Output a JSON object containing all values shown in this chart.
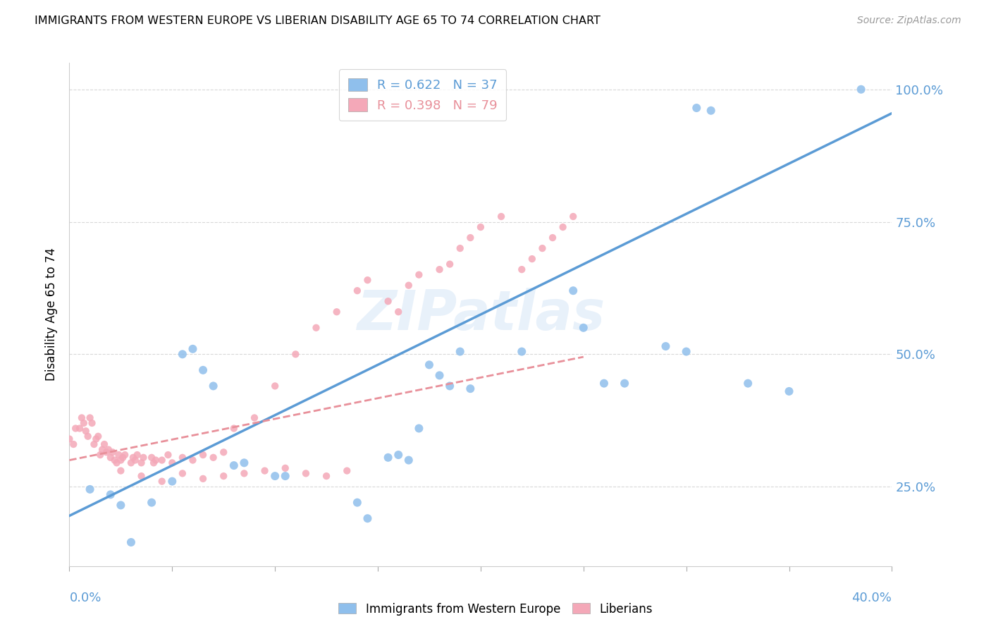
{
  "title": "IMMIGRANTS FROM WESTERN EUROPE VS LIBERIAN DISABILITY AGE 65 TO 74 CORRELATION CHART",
  "source": "Source: ZipAtlas.com",
  "ylabel": "Disability Age 65 to 74",
  "xlim": [
    0.0,
    0.4
  ],
  "ylim": [
    0.1,
    1.05
  ],
  "blue_color": "#8fbfec",
  "pink_color": "#f4a8b8",
  "blue_line_color": "#5b9bd5",
  "pink_line_color": "#e8909a",
  "legend_R1": "0.622",
  "legend_N1": "37",
  "legend_R2": "0.398",
  "legend_N2": "79",
  "watermark": "ZIPatlas",
  "blue_line_x0": 0.0,
  "blue_line_y0": 0.195,
  "blue_line_x1": 0.4,
  "blue_line_y1": 0.955,
  "pink_line_x0": 0.0,
  "pink_line_y0": 0.3,
  "pink_line_x1": 0.25,
  "pink_line_y1": 0.495,
  "blue_x": [
    0.305,
    0.312,
    0.385,
    0.245,
    0.25,
    0.175,
    0.18,
    0.185,
    0.19,
    0.195,
    0.155,
    0.16,
    0.165,
    0.17,
    0.14,
    0.145,
    0.065,
    0.07,
    0.055,
    0.06,
    0.04,
    0.05,
    0.02,
    0.025,
    0.03,
    0.35,
    0.29,
    0.3,
    0.22,
    0.1,
    0.105,
    0.08,
    0.085,
    0.01,
    0.26,
    0.27,
    0.33
  ],
  "blue_y": [
    0.965,
    0.96,
    1.0,
    0.62,
    0.55,
    0.48,
    0.46,
    0.44,
    0.505,
    0.435,
    0.305,
    0.31,
    0.3,
    0.36,
    0.22,
    0.19,
    0.47,
    0.44,
    0.5,
    0.51,
    0.22,
    0.26,
    0.235,
    0.215,
    0.145,
    0.43,
    0.515,
    0.505,
    0.505,
    0.27,
    0.27,
    0.29,
    0.295,
    0.245,
    0.445,
    0.445,
    0.445
  ],
  "pink_x": [
    0.0,
    0.002,
    0.003,
    0.005,
    0.006,
    0.007,
    0.008,
    0.009,
    0.01,
    0.011,
    0.012,
    0.013,
    0.014,
    0.015,
    0.016,
    0.017,
    0.018,
    0.019,
    0.02,
    0.021,
    0.022,
    0.023,
    0.024,
    0.025,
    0.026,
    0.027,
    0.03,
    0.031,
    0.032,
    0.033,
    0.035,
    0.036,
    0.04,
    0.041,
    0.042,
    0.045,
    0.048,
    0.05,
    0.055,
    0.06,
    0.065,
    0.07,
    0.075,
    0.08,
    0.09,
    0.1,
    0.11,
    0.12,
    0.13,
    0.14,
    0.145,
    0.155,
    0.16,
    0.165,
    0.17,
    0.18,
    0.185,
    0.19,
    0.195,
    0.2,
    0.21,
    0.22,
    0.225,
    0.23,
    0.235,
    0.24,
    0.245,
    0.025,
    0.035,
    0.045,
    0.055,
    0.065,
    0.075,
    0.085,
    0.095,
    0.105,
    0.115,
    0.125,
    0.135
  ],
  "pink_y": [
    0.34,
    0.33,
    0.36,
    0.36,
    0.38,
    0.37,
    0.355,
    0.345,
    0.38,
    0.37,
    0.33,
    0.34,
    0.345,
    0.31,
    0.32,
    0.33,
    0.315,
    0.32,
    0.305,
    0.315,
    0.3,
    0.295,
    0.31,
    0.3,
    0.305,
    0.31,
    0.295,
    0.305,
    0.3,
    0.31,
    0.295,
    0.305,
    0.305,
    0.295,
    0.3,
    0.3,
    0.31,
    0.295,
    0.305,
    0.3,
    0.31,
    0.305,
    0.315,
    0.36,
    0.38,
    0.44,
    0.5,
    0.55,
    0.58,
    0.62,
    0.64,
    0.6,
    0.58,
    0.63,
    0.65,
    0.66,
    0.67,
    0.7,
    0.72,
    0.74,
    0.76,
    0.66,
    0.68,
    0.7,
    0.72,
    0.74,
    0.76,
    0.28,
    0.27,
    0.26,
    0.275,
    0.265,
    0.27,
    0.275,
    0.28,
    0.285,
    0.275,
    0.27,
    0.28
  ]
}
